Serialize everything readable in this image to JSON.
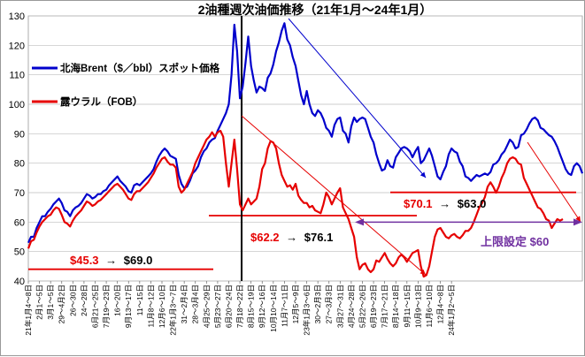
{
  "chart_data": {
    "type": "line",
    "title": "2油種週次油価推移（21年1月～24年1月）",
    "ylim": [
      40,
      130
    ],
    "yticks": [
      40,
      50,
      60,
      70,
      80,
      90,
      100,
      110,
      120,
      130
    ],
    "xlabels": [
      "21年1月4～8日",
      "2月1～5日",
      "3月1～5日",
      "29～4月2日",
      "26～30日",
      "24～28日",
      "6月21～25日",
      "7月19～23日",
      "16～20日",
      "9月13～17日",
      "11～15日",
      "11月8～12日",
      "12月6～10日",
      "22年1月3～7日",
      "31～2月4日",
      "28～3月4日",
      "4月25～29日",
      "5月23～27日",
      "6月20～24日",
      "7月18～22日",
      "8月15～19日",
      "9月12～16日",
      "10月10～14日",
      "11月7～11日",
      "12月5～9日",
      "23年1月3～6日",
      "30～2月3日",
      "27～3月3日",
      "3月27～31日",
      "4月24～28日",
      "5月22～26日",
      "6月19～23日",
      "7月17～21日",
      "8月14～18日",
      "9月11～15日",
      "10月9～13日",
      "11月6～10日",
      "12月4～8日",
      "24年1月2～5日"
    ],
    "series": [
      {
        "name": "北海Brent（$／bbl）スポット価格",
        "color": "#0000cc",
        "values": [
          53.0,
          55.0,
          55.0,
          58.0,
          60.0,
          62.0,
          62.0,
          63.5,
          64.5,
          66.0,
          67.0,
          68.0,
          66.5,
          64.0,
          63.5,
          62.0,
          64.0,
          65.0,
          65.5,
          66.5,
          68.0,
          69.5,
          69.0,
          68.0,
          68.5,
          69.5,
          69.5,
          70.5,
          71.0,
          72.5,
          73.5,
          74.5,
          75.5,
          74.0,
          73.0,
          72.0,
          70.5,
          70.0,
          72.5,
          73.0,
          72.5,
          73.5,
          74.5,
          75.5,
          76.5,
          78.0,
          80.5,
          82.5,
          84.0,
          85.0,
          84.0,
          82.5,
          82.0,
          81.5,
          76.0,
          73.0,
          71.5,
          72.0,
          74.0,
          76.5,
          77.5,
          79.0,
          82.0,
          84.0,
          85.0,
          87.0,
          88.0,
          88.5,
          91.0,
          93.0,
          95.0,
          97.0,
          100.0,
          110.0,
          127.0,
          118.0,
          102.0,
          106.0,
          114.0,
          123.0,
          113.0,
          108.0,
          104.0,
          106.0,
          105.5,
          104.5,
          109.0,
          110.5,
          113.5,
          118.0,
          121.0,
          125.0,
          127.5,
          122.0,
          120.0,
          116.0,
          113.0,
          108.0,
          103.0,
          100.0,
          104.5,
          100.0,
          97.0,
          96.0,
          98.0,
          97.0,
          95.0,
          92.0,
          91.0,
          89.0,
          93.0,
          95.0,
          95.5,
          91.0,
          90.0,
          87.0,
          92.5,
          95.5,
          94.0,
          95.0,
          95.5,
          95.0,
          92.0,
          89.0,
          87.0,
          83.0,
          80.0,
          77.5,
          78.0,
          81.0,
          79.0,
          78.5,
          82.0,
          83.5,
          85.0,
          85.5,
          85.0,
          84.0,
          82.0,
          84.0,
          85.5,
          80.0,
          81.0,
          83.0,
          85.0,
          82.5,
          79.0,
          75.5,
          74.5,
          77.0,
          79.0,
          83.0,
          85.0,
          84.0,
          83.5,
          80.5,
          79.0,
          75.5,
          75.0,
          74.0,
          75.0,
          76.0,
          75.5,
          76.0,
          76.5,
          76.0,
          77.0,
          79.5,
          80.0,
          81.0,
          83.0,
          84.0,
          86.0,
          88.0,
          87.0,
          85.0,
          85.5,
          89.5,
          90.0,
          91.5,
          93.5,
          95.0,
          95.5,
          94.5,
          92.0,
          91.5,
          90.5,
          89.5,
          89.0,
          87.5,
          85.5,
          83.0,
          80.5,
          78.0,
          76.5,
          76.0,
          79.0,
          80.0,
          79.0,
          76.5
        ]
      },
      {
        "name": "露ウラル（FOB）",
        "color": "#e60000",
        "values": [
          51.0,
          53.5,
          54.0,
          56.5,
          58.5,
          60.0,
          61.0,
          62.0,
          62.5,
          64.0,
          65.0,
          64.5,
          62.5,
          60.0,
          59.5,
          58.5,
          60.5,
          62.0,
          63.0,
          64.0,
          65.5,
          67.0,
          66.5,
          65.5,
          66.0,
          67.0,
          67.5,
          68.5,
          69.5,
          70.5,
          71.5,
          72.5,
          73.0,
          72.0,
          71.0,
          69.5,
          68.0,
          67.5,
          69.5,
          70.5,
          70.5,
          71.5,
          72.5,
          73.5,
          75.0,
          76.5,
          78.5,
          80.0,
          81.5,
          82.0,
          80.5,
          79.5,
          79.5,
          78.5,
          72.0,
          70.0,
          71.0,
          73.0,
          75.0,
          77.0,
          80.0,
          82.0,
          84.0,
          86.0,
          88.0,
          89.0,
          90.5,
          89.0,
          90.5,
          91.0,
          89.0,
          80.0,
          72.0,
          80.0,
          88.0,
          78.0,
          66.0,
          64.0,
          66.0,
          68.0,
          66.0,
          67.0,
          68.0,
          72.0,
          78.0,
          80.0,
          85.0,
          87.5,
          87.0,
          85.0,
          80.0,
          76.0,
          74.0,
          72.0,
          72.5,
          71.0,
          73.0,
          69.0,
          67.5,
          66.5,
          66.5,
          65.0,
          65.5,
          64.0,
          63.5,
          63.0,
          66.0,
          70.0,
          68.5,
          66.0,
          68.0,
          70.0,
          71.5,
          65.0,
          63.0,
          61.0,
          58.0,
          55.0,
          48.0,
          44.0,
          45.5,
          46.0,
          44.0,
          43.0,
          44.0,
          47.0,
          46.5,
          48.0,
          49.5,
          47.5,
          46.0,
          45.0,
          46.0,
          48.0,
          49.0,
          48.0,
          46.5,
          48.0,
          49.5,
          50.0,
          50.5,
          45.0,
          41.5,
          42.0,
          45.0,
          50.0,
          55.0,
          57.5,
          58.0,
          56.5,
          55.0,
          54.5,
          55.5,
          56.0,
          55.0,
          54.5,
          55.5,
          57.0,
          57.0,
          58.0,
          60.0,
          62.5,
          65.0,
          66.5,
          68.5,
          72.0,
          73.5,
          72.0,
          70.0,
          72.0,
          75.0,
          77.0,
          80.0,
          81.5,
          82.0,
          81.5,
          80.0,
          79.5,
          75.0,
          73.0,
          71.0,
          69.0,
          67.0,
          65.0,
          64.5,
          63.0,
          61.0,
          60.5,
          58.0,
          59.5,
          61.0,
          60.5,
          61.0
        ]
      }
    ],
    "legend": [
      {
        "label": "北海Brent（$／bbl）スポット価格",
        "color": "#0000cc"
      },
      {
        "label": "露ウラル（FOB）",
        "color": "#e60000"
      }
    ],
    "annotations": {
      "a1": {
        "v1": "$45.3",
        "arrow": "→",
        "v2": "$69.0"
      },
      "a2": {
        "v1": "$62.2",
        "arrow": "→",
        "v2": "$76.1"
      },
      "a3": {
        "v1": "$70.1",
        "arrow": "→",
        "v2": "$63.0"
      },
      "cap": "上限設定 $60"
    },
    "reference_lines": [
      {
        "y": 44.0,
        "color": "#e60000"
      },
      {
        "y": 62.2,
        "color": "#e60000"
      },
      {
        "y": 70.1,
        "color": "#e60000"
      }
    ]
  }
}
